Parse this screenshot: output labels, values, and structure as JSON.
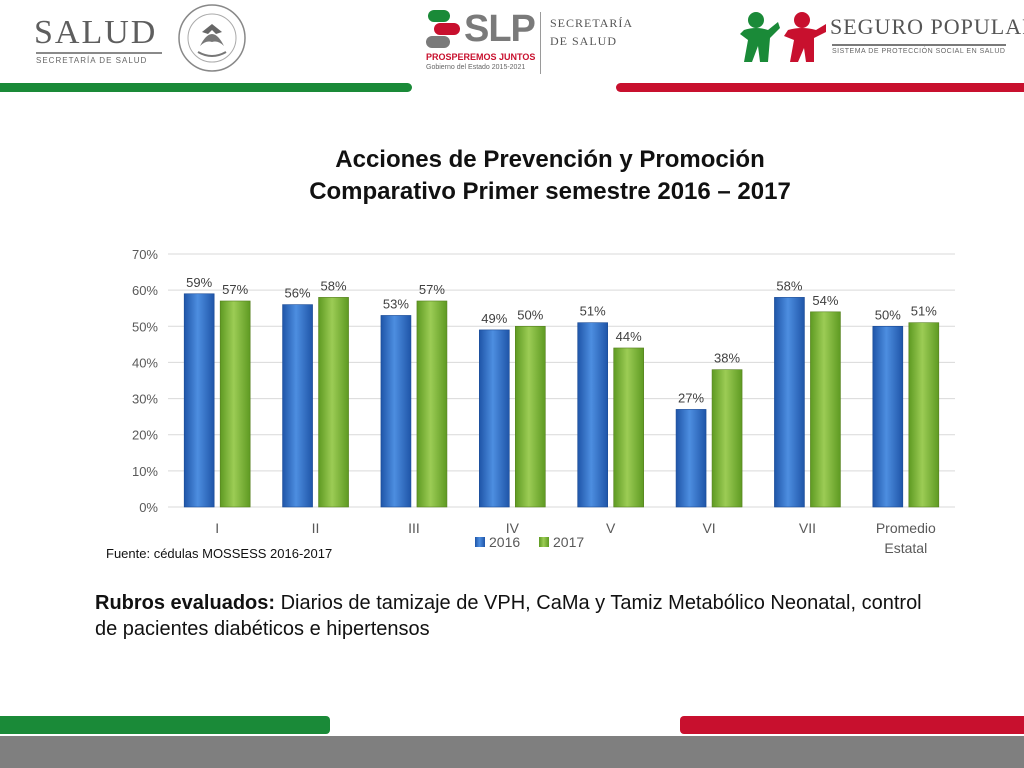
{
  "header": {
    "salud_logo": {
      "word": "SALUD",
      "subtitle": "SECRETARÍA DE SALUD"
    },
    "seal_logo": {
      "text": "ESTADOS UNIDOS MEXICANOS"
    },
    "slp_logo": {
      "word": "SLP",
      "slogan": "PROSPEREMOS JUNTOS",
      "gov": "Gobierno del Estado 2015-2021",
      "secretaria_line1": "SECRETARÍA",
      "secretaria_line2": "DE SALUD"
    },
    "seguro_logo": {
      "word": "SEGURO POPULAR",
      "subtitle": "SISTEMA DE PROTECCIÓN SOCIAL EN SALUD"
    }
  },
  "title": {
    "line1": "Acciones de Prevención y Promoción",
    "line2": "Comparativo Primer semestre  2016 – 2017"
  },
  "chart_data": {
    "type": "bar",
    "title": "Acciones de Prevención y Promoción Comparativo Primer semestre 2016 – 2017",
    "categories": [
      "I",
      "II",
      "III",
      "IV",
      "V",
      "VI",
      "VII",
      "Promedio Estatal"
    ],
    "series": [
      {
        "name": "2016",
        "color": "#2f6fc8",
        "values": [
          59,
          56,
          53,
          49,
          51,
          27,
          58,
          50
        ]
      },
      {
        "name": "2017",
        "color": "#7fb23a",
        "values": [
          57,
          58,
          57,
          50,
          44,
          38,
          54,
          51
        ]
      }
    ],
    "ylim": [
      0,
      70
    ],
    "yticks": [
      0,
      10,
      20,
      30,
      40,
      50,
      60,
      70
    ],
    "ytick_suffix": "%",
    "grid": true,
    "legend_position": "bottom"
  },
  "source": "Fuente: cédulas MOSSESS 2016-2017",
  "rubros": {
    "label": "Rubros evaluados:",
    "text": " Diarios de tamizaje de VPH, CaMa y Tamiz Metabólico Neonatal, control de pacientes diabéticos e hipertensos"
  },
  "colors": {
    "green_band": "#1a8a38",
    "red_band": "#c8102e",
    "footer_gray": "#7f7f7f"
  }
}
